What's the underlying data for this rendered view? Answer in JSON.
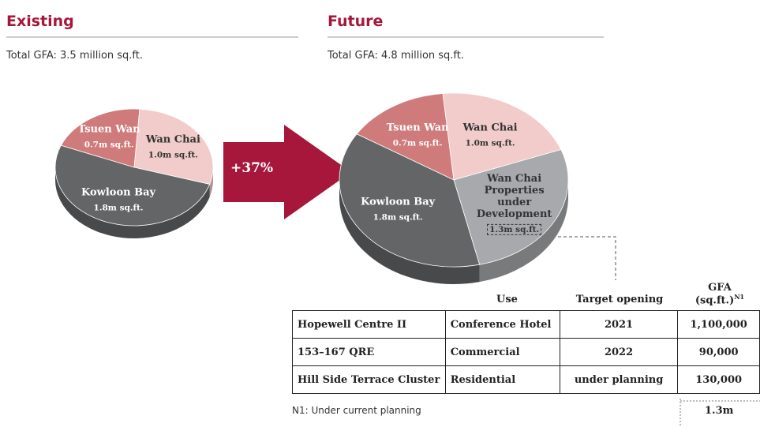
{
  "chart_data": [
    {
      "type": "pie",
      "title": "Existing",
      "subtitle": "Total GFA: 3.5 million sq.ft.",
      "categories": [
        "Tsuen Wan",
        "Wan Chai",
        "Kowloon Bay"
      ],
      "values": [
        0.7,
        1.0,
        1.8
      ],
      "value_labels": [
        "0.7m sq.ft.",
        "1.0m sq.ft.",
        "1.8m sq.ft."
      ],
      "colors": [
        "#d07b7b",
        "#f1cccb",
        "#646567"
      ]
    },
    {
      "type": "pie",
      "title": "Future",
      "subtitle": "Total GFA: 4.8 million sq.ft.",
      "categories": [
        "Tsuen Wan",
        "Wan Chai",
        "Wan Chai Properties under Development",
        "Kowloon Bay"
      ],
      "values": [
        0.7,
        1.0,
        1.3,
        1.8
      ],
      "value_labels": [
        "0.7m sq.ft.",
        "1.0m sq.ft.",
        "1.3m sq.ft.",
        "1.8m sq.ft."
      ],
      "colors": [
        "#d07b7b",
        "#f1cccb",
        "#a8a9ac",
        "#646567"
      ]
    }
  ],
  "growth_label": "+37%",
  "table": {
    "headers": [
      "Use",
      "Target opening",
      "GFA (sq.ft.)"
    ],
    "header_note": "N1",
    "rows": [
      [
        "Hopewell Centre II",
        "Conference Hotel",
        "2021",
        "1,100,000"
      ],
      [
        "153–167 QRE",
        "Commercial",
        "2022",
        "90,000"
      ],
      [
        "Hill Side Terrace Cluster",
        "Residential",
        "under planning",
        "130,000"
      ]
    ],
    "note": "N1:  Under current planning",
    "total": "1.3m"
  }
}
